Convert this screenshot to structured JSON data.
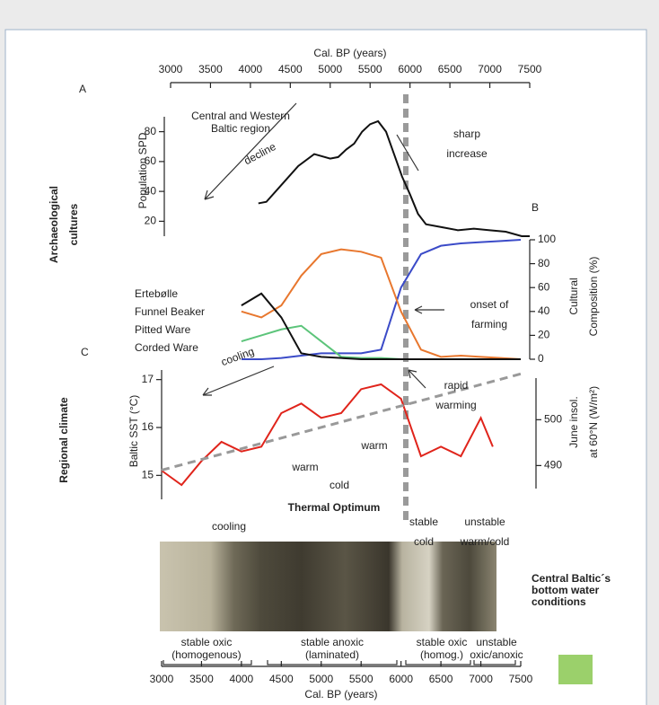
{
  "figure": {
    "sections": [
      [
        "Archaeological",
        "cultures"
      ],
      [
        "Regional climate"
      ]
    ]
  },
  "core": {
    "caption": [
      "Central Baltic´s",
      "bottom water",
      "conditions"
    ],
    "units": [
      [
        "stable oxic",
        "(homogenous)"
      ],
      [
        "stable anoxic",
        "(laminated)"
      ],
      [
        "stable oxic",
        "(homog.)"
      ],
      [
        "unstable",
        "oxic/anoxic"
      ]
    ]
  },
  "chart_data": [
    {
      "type": "line",
      "label": "A",
      "title": [
        "Central and Western",
        "Baltic region"
      ],
      "xlabel": "Cal. BP (years)",
      "ylabel": [
        "Population SPD"
      ],
      "xlim": [
        3000,
        7500
      ],
      "xticks": [
        3000,
        3500,
        4000,
        4500,
        5000,
        5500,
        6000,
        6500,
        7000,
        7500
      ],
      "ylim": [
        10,
        90
      ],
      "yticks": [
        20,
        40,
        60,
        80
      ],
      "x": [
        4100,
        4200,
        4400,
        4600,
        4800,
        5000,
        5100,
        5200,
        5300,
        5400,
        5500,
        5600,
        5700,
        5800,
        5900,
        6000,
        6100,
        6200,
        6400,
        6600,
        6800,
        7000,
        7200,
        7400,
        7500
      ],
      "series": [
        {
          "color": "#111111",
          "values": [
            32,
            33,
            45,
            57,
            65,
            62,
            63,
            68,
            72,
            80,
            85,
            87,
            80,
            65,
            50,
            38,
            25,
            18,
            16,
            14,
            15,
            14,
            13,
            10,
            10
          ]
        }
      ],
      "annotations": [
        {
          "lines": [
            "decline"
          ]
        },
        {
          "lines": [
            "sharp",
            "increase"
          ]
        }
      ]
    },
    {
      "type": "line",
      "label": "B",
      "ylabel": [
        "Cultural",
        "Composition (%)"
      ],
      "xlim": [
        3000,
        7500
      ],
      "ylim": [
        0,
        100
      ],
      "yticks": [
        0,
        20,
        40,
        60,
        80,
        100
      ],
      "x": [
        4000,
        4250,
        4500,
        4750,
        5000,
        5250,
        5500,
        5750,
        6000,
        6250,
        6500,
        6750,
        7000,
        7250,
        7500
      ],
      "series": [
        {
          "name": "Ertebølle",
          "color": "#3b4bc8",
          "values": [
            0,
            0,
            1,
            3,
            5,
            5,
            5,
            8,
            60,
            88,
            95,
            97,
            98,
            99,
            100
          ]
        },
        {
          "name": "Funnel Beaker",
          "color": "#e8772e",
          "values": [
            40,
            35,
            45,
            70,
            88,
            92,
            90,
            85,
            40,
            8,
            2,
            3,
            2,
            1,
            0
          ]
        },
        {
          "name": "Pitted Ware",
          "color": "#5cc47a",
          "values": [
            15,
            20,
            25,
            28,
            15,
            2,
            1,
            1,
            0,
            0,
            0,
            0,
            0,
            0,
            0
          ]
        },
        {
          "name": "Corded Ware",
          "color": "#111111",
          "values": [
            45,
            55,
            35,
            5,
            2,
            1,
            0,
            0,
            0,
            0,
            0,
            0,
            0,
            0,
            0
          ]
        }
      ],
      "annotations": [
        {
          "lines": [
            "onset of",
            "farming"
          ]
        }
      ]
    },
    {
      "type": "line",
      "label": "C",
      "xlabel": "Cal. BP (years)",
      "ylabel": [
        "Baltic SST (°C)"
      ],
      "y2label": [
        "June insol.",
        "at 60°N (W/m²)"
      ],
      "xlim": [
        3000,
        7500
      ],
      "xticks": [
        3000,
        3500,
        4000,
        4500,
        5000,
        5500,
        6000,
        6500,
        7000,
        7500
      ],
      "ylim": [
        14.5,
        17.2
      ],
      "yticks": [
        15,
        16,
        17
      ],
      "y2lim": [
        484,
        513
      ],
      "y2ticks": [
        490,
        500
      ],
      "series": [
        {
          "color": "#e0241b",
          "x": [
            3000,
            3250,
            3500,
            3750,
            4000,
            4250,
            4500,
            4750,
            5000,
            5250,
            5500,
            5750,
            6000,
            6250,
            6500,
            6750,
            7000,
            7150
          ],
          "values": [
            15.1,
            14.8,
            15.3,
            15.7,
            15.5,
            15.6,
            16.3,
            16.5,
            16.2,
            16.3,
            16.8,
            16.9,
            16.6,
            15.4,
            15.6,
            15.4,
            16.2,
            15.6
          ]
        },
        {
          "color": "#999999",
          "axis": "y2",
          "dash": true,
          "x": [
            3000,
            7500
          ],
          "values": [
            489,
            510
          ]
        }
      ],
      "annotations": [
        {
          "lines": [
            "cooling"
          ]
        },
        {
          "lines": [
            "warm"
          ]
        },
        {
          "lines": [
            "cold"
          ]
        },
        {
          "lines": [
            "warm"
          ]
        },
        {
          "lines": [
            "rapid",
            "warming"
          ]
        },
        {
          "lines": [
            "Thermal Optimum"
          ]
        },
        {
          "lines": [
            "cooling"
          ]
        },
        {
          "lines": [
            "stable",
            "cold"
          ]
        },
        {
          "lines": [
            "unstable",
            "warm/cold"
          ]
        }
      ]
    }
  ]
}
